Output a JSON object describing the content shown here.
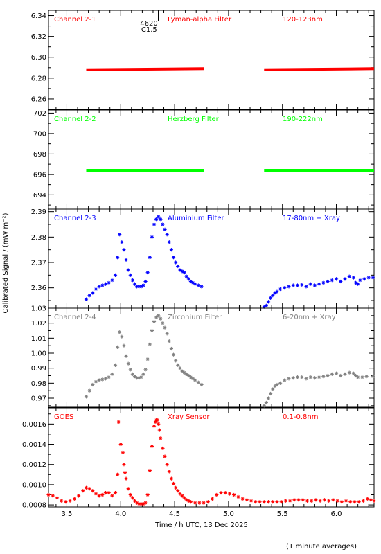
{
  "x_axis": {
    "label": "Time / h UTC, 13 Dec 2025",
    "range": [
      3.33,
      6.35
    ],
    "ticks": [
      3.5,
      4.0,
      4.5,
      5.0,
      5.5,
      6.0
    ],
    "tick_labels": [
      "3.5",
      "4.0",
      "4.5",
      "5.0",
      "5.5",
      "6.0"
    ]
  },
  "y_axis_label": "Calibrated Signal / (mW m⁻²)",
  "footer_note": "(1 minute averages)",
  "flare_marker": {
    "time": 4.35,
    "number": "4620",
    "class": "C1.5"
  },
  "colors": {
    "red": "#ff0000",
    "green": "#00ff00",
    "blue": "#0000ff",
    "gray": "#808080",
    "black": "#000000"
  },
  "chart_data": [
    {
      "type": "scatter",
      "channel": "Channel 2-1",
      "filter": "Lyman-alpha Filter",
      "band": "120-123nm",
      "color": "#ff0000",
      "ylim": [
        6.25,
        6.345
      ],
      "yticks": [
        6.26,
        6.28,
        6.3,
        6.32,
        6.34
      ],
      "ytick_labels": [
        "6.26",
        "6.28",
        "6.30",
        "6.32",
        "6.34"
      ],
      "segments": [
        {
          "x_start": 3.68,
          "x_end": 4.77,
          "y_start": 6.288,
          "y_end": 6.289
        },
        {
          "x_start": 5.33,
          "x_end": 6.35,
          "y_start": 6.288,
          "y_end": 6.289
        }
      ]
    },
    {
      "type": "scatter",
      "channel": "Channel 2-2",
      "filter": "Herzberg Filter",
      "band": "190-222nm",
      "color": "#00ff00",
      "ylim": [
        692.6,
        702.3
      ],
      "yticks": [
        694,
        696,
        698,
        700,
        702
      ],
      "ytick_labels": [
        "694",
        "696",
        "698",
        "700",
        "702"
      ],
      "segments": [
        {
          "x_start": 3.68,
          "x_end": 4.77,
          "y_start": 696.4,
          "y_end": 696.4
        },
        {
          "x_start": 5.33,
          "x_end": 6.35,
          "y_start": 696.4,
          "y_end": 696.4
        }
      ]
    },
    {
      "type": "scatter",
      "channel": "Channel 2-3",
      "filter": "Aluminium Filter",
      "band": "17-80nm + Xray",
      "color": "#0000ff",
      "ylim": [
        2.352,
        2.391
      ],
      "yticks": [
        2.36,
        2.37,
        2.38,
        2.39
      ],
      "ytick_labels": [
        "2.36",
        "2.37",
        "2.38",
        "2.39"
      ],
      "points": [
        [
          3.68,
          2.3555
        ],
        [
          3.71,
          2.357
        ],
        [
          3.74,
          2.358
        ],
        [
          3.77,
          2.3595
        ],
        [
          3.8,
          2.3605
        ],
        [
          3.83,
          2.361
        ],
        [
          3.86,
          2.3615
        ],
        [
          3.89,
          2.362
        ],
        [
          3.92,
          2.363
        ],
        [
          3.95,
          2.365
        ],
        [
          3.97,
          2.372
        ],
        [
          3.99,
          2.381
        ],
        [
          4.01,
          2.378
        ],
        [
          4.03,
          2.375
        ],
        [
          4.05,
          2.371
        ],
        [
          4.07,
          2.367
        ],
        [
          4.09,
          2.365
        ],
        [
          4.11,
          2.363
        ],
        [
          4.13,
          2.3615
        ],
        [
          4.15,
          2.3605
        ],
        [
          4.17,
          2.3605
        ],
        [
          4.19,
          2.3605
        ],
        [
          4.21,
          2.361
        ],
        [
          4.23,
          2.3625
        ],
        [
          4.25,
          2.366
        ],
        [
          4.27,
          2.372
        ],
        [
          4.29,
          2.38
        ],
        [
          4.31,
          2.385
        ],
        [
          4.33,
          2.387
        ],
        [
          4.35,
          2.388
        ],
        [
          4.37,
          2.387
        ],
        [
          4.39,
          2.385
        ],
        [
          4.41,
          2.383
        ],
        [
          4.43,
          2.381
        ],
        [
          4.45,
          2.378
        ],
        [
          4.47,
          2.375
        ],
        [
          4.49,
          2.372
        ],
        [
          4.51,
          2.37
        ],
        [
          4.53,
          2.3685
        ],
        [
          4.55,
          2.367
        ],
        [
          4.57,
          2.3665
        ],
        [
          4.59,
          2.366
        ],
        [
          4.61,
          2.3645
        ],
        [
          4.63,
          2.3635
        ],
        [
          4.65,
          2.3625
        ],
        [
          4.67,
          2.362
        ],
        [
          4.69,
          2.3615
        ],
        [
          4.72,
          2.361
        ],
        [
          4.75,
          2.3605
        ],
        [
          5.33,
          2.3525
        ],
        [
          5.35,
          2.353
        ],
        [
          5.37,
          2.3545
        ],
        [
          5.39,
          2.356
        ],
        [
          5.41,
          2.357
        ],
        [
          5.43,
          2.358
        ],
        [
          5.45,
          2.3585
        ],
        [
          5.48,
          2.3595
        ],
        [
          5.52,
          2.36
        ],
        [
          5.56,
          2.3605
        ],
        [
          5.6,
          2.361
        ],
        [
          5.64,
          2.361
        ],
        [
          5.68,
          2.3612
        ],
        [
          5.72,
          2.3605
        ],
        [
          5.76,
          2.3615
        ],
        [
          5.8,
          2.361
        ],
        [
          5.84,
          2.3615
        ],
        [
          5.88,
          2.362
        ],
        [
          5.92,
          2.3625
        ],
        [
          5.96,
          2.363
        ],
        [
          6.0,
          2.3635
        ],
        [
          6.04,
          2.3625
        ],
        [
          6.08,
          2.3635
        ],
        [
          6.12,
          2.3645
        ],
        [
          6.16,
          2.364
        ],
        [
          6.18,
          2.362
        ],
        [
          6.2,
          2.3615
        ],
        [
          6.22,
          2.363
        ],
        [
          6.26,
          2.3635
        ],
        [
          6.3,
          2.364
        ],
        [
          6.34,
          2.364
        ]
      ]
    },
    {
      "type": "scatter",
      "channel": "Channel 2-4",
      "filter": "Zirconium Filter",
      "band": "6-20nm + Xray",
      "color": "#808080",
      "ylim": [
        0.964,
        1.03
      ],
      "yticks": [
        0.97,
        0.98,
        0.99,
        1.0,
        1.01,
        1.02,
        1.03
      ],
      "ytick_labels": [
        "0.97",
        "0.98",
        "0.99",
        "1.00",
        "1.01",
        "1.02",
        "1.03"
      ],
      "points": [
        [
          3.68,
          0.971
        ],
        [
          3.71,
          0.975
        ],
        [
          3.74,
          0.979
        ],
        [
          3.77,
          0.981
        ],
        [
          3.8,
          0.982
        ],
        [
          3.83,
          0.9825
        ],
        [
          3.86,
          0.983
        ],
        [
          3.89,
          0.984
        ],
        [
          3.92,
          0.986
        ],
        [
          3.95,
          0.992
        ],
        [
          3.97,
          1.004
        ],
        [
          3.99,
          1.014
        ],
        [
          4.01,
          1.011
        ],
        [
          4.03,
          1.005
        ],
        [
          4.05,
          0.998
        ],
        [
          4.07,
          0.993
        ],
        [
          4.09,
          0.989
        ],
        [
          4.11,
          0.986
        ],
        [
          4.13,
          0.9845
        ],
        [
          4.15,
          0.9835
        ],
        [
          4.17,
          0.9835
        ],
        [
          4.19,
          0.984
        ],
        [
          4.21,
          0.986
        ],
        [
          4.23,
          0.989
        ],
        [
          4.25,
          0.996
        ],
        [
          4.27,
          1.006
        ],
        [
          4.29,
          1.015
        ],
        [
          4.31,
          1.021
        ],
        [
          4.33,
          1.024
        ],
        [
          4.35,
          1.025
        ],
        [
          4.37,
          1.023
        ],
        [
          4.39,
          1.02
        ],
        [
          4.41,
          1.017
        ],
        [
          4.43,
          1.013
        ],
        [
          4.45,
          1.008
        ],
        [
          4.47,
          1.003
        ],
        [
          4.49,
          0.999
        ],
        [
          4.51,
          0.995
        ],
        [
          4.53,
          0.992
        ],
        [
          4.55,
          0.99
        ],
        [
          4.57,
          0.988
        ],
        [
          4.59,
          0.987
        ],
        [
          4.61,
          0.986
        ],
        [
          4.63,
          0.985
        ],
        [
          4.65,
          0.984
        ],
        [
          4.67,
          0.983
        ],
        [
          4.69,
          0.982
        ],
        [
          4.72,
          0.9805
        ],
        [
          4.75,
          0.979
        ],
        [
          5.33,
          0.965
        ],
        [
          5.35,
          0.967
        ],
        [
          5.37,
          0.97
        ],
        [
          5.39,
          0.973
        ],
        [
          5.41,
          0.976
        ],
        [
          5.43,
          0.978
        ],
        [
          5.45,
          0.979
        ],
        [
          5.48,
          0.98
        ],
        [
          5.52,
          0.982
        ],
        [
          5.56,
          0.983
        ],
        [
          5.6,
          0.9835
        ],
        [
          5.64,
          0.984
        ],
        [
          5.68,
          0.984
        ],
        [
          5.72,
          0.983
        ],
        [
          5.76,
          0.984
        ],
        [
          5.8,
          0.9835
        ],
        [
          5.84,
          0.984
        ],
        [
          5.88,
          0.9845
        ],
        [
          5.92,
          0.985
        ],
        [
          5.96,
          0.986
        ],
        [
          6.0,
          0.9865
        ],
        [
          6.04,
          0.985
        ],
        [
          6.08,
          0.986
        ],
        [
          6.12,
          0.987
        ],
        [
          6.16,
          0.9865
        ],
        [
          6.18,
          0.985
        ],
        [
          6.2,
          0.984
        ],
        [
          6.24,
          0.984
        ],
        [
          6.28,
          0.9845
        ],
        [
          6.34,
          0.9845
        ]
      ]
    },
    {
      "type": "scatter",
      "channel": "GOES",
      "filter": "Xray Sensor",
      "band": "0.1-0.8nm",
      "color": "#ff0000",
      "ylim": [
        0.00078,
        0.00176
      ],
      "yticks": [
        0.0008,
        0.001,
        0.0012,
        0.0014,
        0.0016
      ],
      "ytick_labels": [
        "0.0008",
        "0.0010",
        "0.0012",
        "0.0014",
        "0.0016"
      ],
      "points": [
        [
          3.33,
          0.0009
        ],
        [
          3.37,
          0.00089
        ],
        [
          3.41,
          0.00087
        ],
        [
          3.45,
          0.00084
        ],
        [
          3.49,
          0.00083
        ],
        [
          3.53,
          0.00084
        ],
        [
          3.57,
          0.00086
        ],
        [
          3.61,
          0.00089
        ],
        [
          3.65,
          0.00094
        ],
        [
          3.68,
          0.00097
        ],
        [
          3.71,
          0.00096
        ],
        [
          3.74,
          0.00094
        ],
        [
          3.77,
          0.00091
        ],
        [
          3.8,
          0.00089
        ],
        [
          3.83,
          0.0009
        ],
        [
          3.86,
          0.00092
        ],
        [
          3.89,
          0.00092
        ],
        [
          3.92,
          0.00089
        ],
        [
          3.95,
          0.00092
        ],
        [
          3.97,
          0.0011
        ],
        [
          3.98,
          0.00162
        ],
        [
          4.0,
          0.0014
        ],
        [
          4.02,
          0.00132
        ],
        [
          4.03,
          0.0012
        ],
        [
          4.04,
          0.00112
        ],
        [
          4.05,
          0.00106
        ],
        [
          4.07,
          0.00096
        ],
        [
          4.09,
          0.0009
        ],
        [
          4.11,
          0.00087
        ],
        [
          4.13,
          0.00084
        ],
        [
          4.15,
          0.00082
        ],
        [
          4.17,
          0.00081
        ],
        [
          4.19,
          0.00081
        ],
        [
          4.21,
          0.00081
        ],
        [
          4.23,
          0.00082
        ],
        [
          4.25,
          0.0009
        ],
        [
          4.27,
          0.00114
        ],
        [
          4.29,
          0.00138
        ],
        [
          4.31,
          0.00158
        ],
        [
          4.32,
          0.00162
        ],
        [
          4.33,
          0.00164
        ],
        [
          4.34,
          0.00164
        ],
        [
          4.35,
          0.0016
        ],
        [
          4.36,
          0.00154
        ],
        [
          4.37,
          0.00146
        ],
        [
          4.39,
          0.00136
        ],
        [
          4.41,
          0.00128
        ],
        [
          4.43,
          0.0012
        ],
        [
          4.45,
          0.00113
        ],
        [
          4.47,
          0.00106
        ],
        [
          4.49,
          0.00101
        ],
        [
          4.51,
          0.00097
        ],
        [
          4.53,
          0.00094
        ],
        [
          4.55,
          0.00091
        ],
        [
          4.57,
          0.00089
        ],
        [
          4.59,
          0.00087
        ],
        [
          4.61,
          0.00085
        ],
        [
          4.63,
          0.00084
        ],
        [
          4.65,
          0.00083
        ],
        [
          4.69,
          0.00082
        ],
        [
          4.73,
          0.00082
        ],
        [
          4.77,
          0.00082
        ],
        [
          4.81,
          0.00083
        ],
        [
          4.85,
          0.00086
        ],
        [
          4.89,
          0.0009
        ],
        [
          4.93,
          0.00092
        ],
        [
          4.97,
          0.00092
        ],
        [
          5.01,
          0.00091
        ],
        [
          5.05,
          0.0009
        ],
        [
          5.09,
          0.00088
        ],
        [
          5.13,
          0.00086
        ],
        [
          5.17,
          0.00085
        ],
        [
          5.21,
          0.00084
        ],
        [
          5.25,
          0.00083
        ],
        [
          5.29,
          0.00083
        ],
        [
          5.33,
          0.00083
        ],
        [
          5.37,
          0.00083
        ],
        [
          5.41,
          0.00083
        ],
        [
          5.45,
          0.00083
        ],
        [
          5.49,
          0.00083
        ],
        [
          5.53,
          0.00084
        ],
        [
          5.57,
          0.00084
        ],
        [
          5.61,
          0.00085
        ],
        [
          5.65,
          0.00085
        ],
        [
          5.69,
          0.00085
        ],
        [
          5.73,
          0.00084
        ],
        [
          5.77,
          0.00084
        ],
        [
          5.81,
          0.00085
        ],
        [
          5.85,
          0.00084
        ],
        [
          5.89,
          0.00085
        ],
        [
          5.93,
          0.00084
        ],
        [
          5.97,
          0.00085
        ],
        [
          6.01,
          0.00084
        ],
        [
          6.05,
          0.00083
        ],
        [
          6.09,
          0.00084
        ],
        [
          6.13,
          0.00083
        ],
        [
          6.17,
          0.00083
        ],
        [
          6.21,
          0.00083
        ],
        [
          6.25,
          0.00084
        ],
        [
          6.29,
          0.00086
        ],
        [
          6.32,
          0.00085
        ],
        [
          6.35,
          0.00084
        ]
      ]
    }
  ]
}
